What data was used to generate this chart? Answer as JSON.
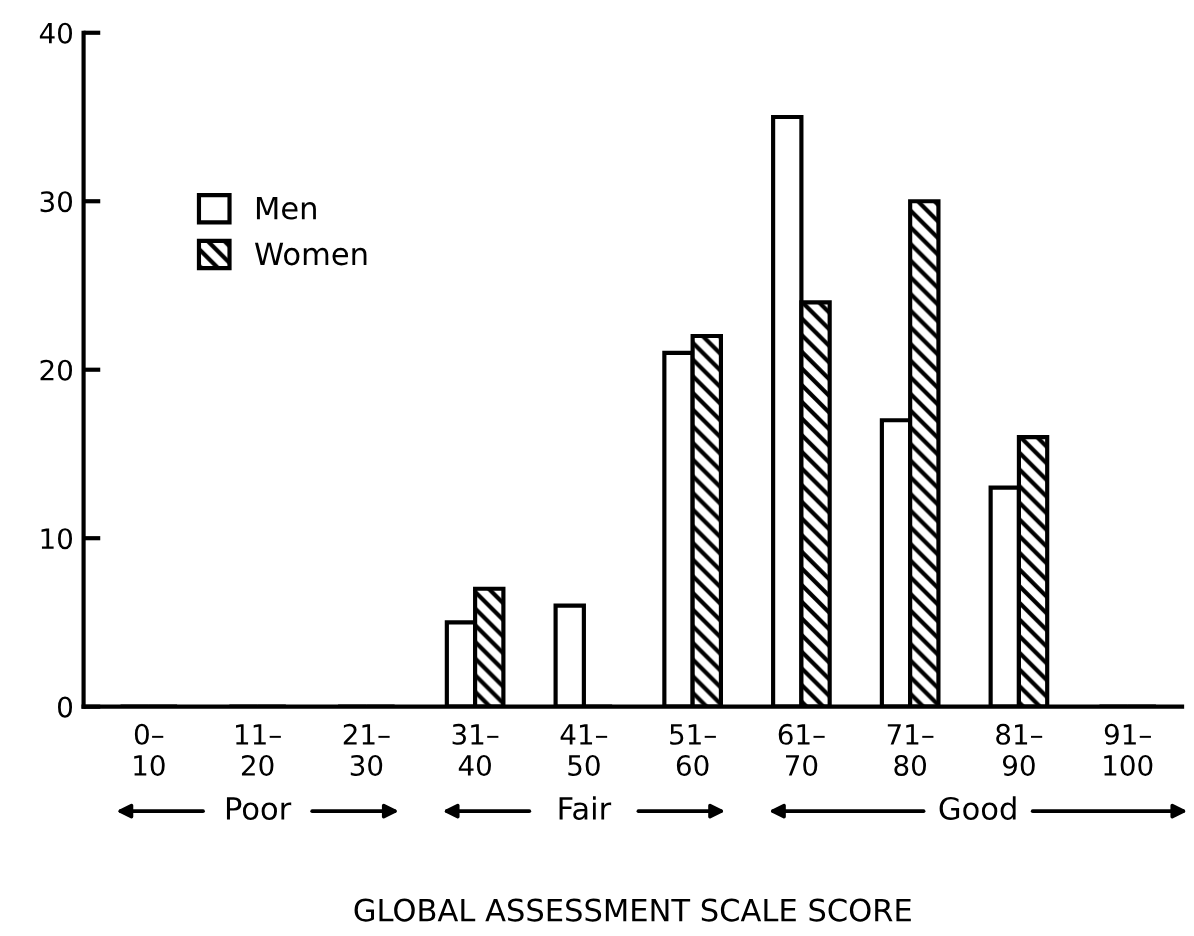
{
  "chart_data": {
    "type": "bar",
    "xlabel": "GLOBAL ASSESSMENT SCALE SCORE",
    "categories": [
      "0–\n10",
      "11–\n20",
      "21–\n30",
      "31–\n40",
      "41–\n50",
      "51–\n60",
      "61–\n70",
      "71–\n80",
      "81–\n90",
      "91–\n100"
    ],
    "series": [
      {
        "name": "Men",
        "color": "#ffffff",
        "values": [
          0,
          0,
          0,
          5,
          6,
          21,
          35,
          17,
          13,
          0
        ]
      },
      {
        "name": "Women",
        "color": "#000000",
        "values": [
          0,
          0,
          0,
          7,
          0,
          22,
          24,
          30,
          16,
          0
        ]
      }
    ],
    "ylim": [
      0,
      40
    ],
    "yticks": [
      0,
      10,
      20,
      30,
      40
    ],
    "grid": false,
    "legend": "top left",
    "annotations": [
      "Poor",
      "Fair",
      "Good"
    ]
  }
}
